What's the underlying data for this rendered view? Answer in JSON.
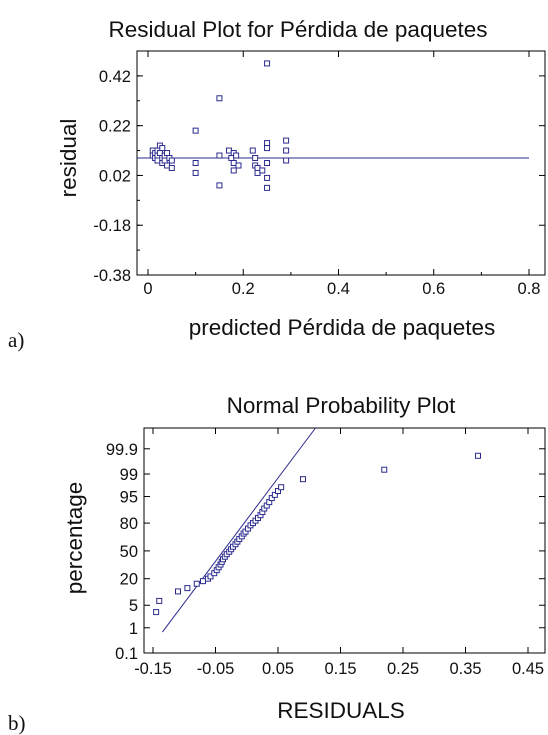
{
  "panel_labels": {
    "a": "a)",
    "b": "b)"
  },
  "colors": {
    "marker": "#2b2b8f",
    "fit_line": "#2b2b8f",
    "axis": "#000000"
  },
  "chart_data": [
    {
      "type": "scatter",
      "title": "Residual Plot for Pérdida de paquetes",
      "xlabel": "predicted Pérdida de paquetes",
      "ylabel": "residual",
      "xlim": [
        0,
        0.8
      ],
      "ylim": [
        -0.38,
        0.52
      ],
      "xticks": [
        0,
        0.2,
        0.4,
        0.6,
        0.8
      ],
      "xtick_labels": [
        "0",
        "0.2",
        "0.4",
        "0.6",
        "0.8"
      ],
      "yticks": [
        -0.38,
        -0.18,
        0.02,
        0.22,
        0.42
      ],
      "ytick_labels": [
        "-0.38",
        "-0.18",
        "0.02",
        "0.22",
        "0.42"
      ],
      "reference_line_y": 0.09,
      "grid": false,
      "legend": "none",
      "points": [
        [
          0.01,
          0.12
        ],
        [
          0.01,
          0.1
        ],
        [
          0.015,
          0.11
        ],
        [
          0.015,
          0.09
        ],
        [
          0.02,
          0.12
        ],
        [
          0.02,
          0.1
        ],
        [
          0.02,
          0.08
        ],
        [
          0.025,
          0.14
        ],
        [
          0.025,
          0.11
        ],
        [
          0.03,
          0.09
        ],
        [
          0.03,
          0.07
        ],
        [
          0.03,
          0.13
        ],
        [
          0.035,
          0.1
        ],
        [
          0.035,
          0.08
        ],
        [
          0.04,
          0.11
        ],
        [
          0.04,
          0.06
        ],
        [
          0.045,
          0.09
        ],
        [
          0.05,
          0.08
        ],
        [
          0.05,
          0.05
        ],
        [
          0.1,
          0.2
        ],
        [
          0.1,
          0.07
        ],
        [
          0.1,
          0.03
        ],
        [
          0.15,
          0.33
        ],
        [
          0.15,
          0.1
        ],
        [
          0.15,
          -0.02
        ],
        [
          0.17,
          0.12
        ],
        [
          0.175,
          0.09
        ],
        [
          0.18,
          0.11
        ],
        [
          0.18,
          0.07
        ],
        [
          0.18,
          0.04
        ],
        [
          0.185,
          0.1
        ],
        [
          0.19,
          0.06
        ],
        [
          0.22,
          0.12
        ],
        [
          0.225,
          0.09
        ],
        [
          0.225,
          0.06
        ],
        [
          0.23,
          0.05
        ],
        [
          0.23,
          0.03
        ],
        [
          0.24,
          0.04
        ],
        [
          0.25,
          0.47
        ],
        [
          0.25,
          0.15
        ],
        [
          0.25,
          0.13
        ],
        [
          0.25,
          0.07
        ],
        [
          0.25,
          0.01
        ],
        [
          0.25,
          -0.03
        ],
        [
          0.29,
          0.16
        ],
        [
          0.29,
          0.12
        ],
        [
          0.29,
          0.08
        ]
      ]
    },
    {
      "type": "scatter",
      "title": "Normal Probability Plot",
      "xlabel": "RESIDUALS",
      "ylabel": "percentage",
      "xlim": [
        -0.15,
        0.45
      ],
      "xticks": [
        -0.15,
        -0.05,
        0.05,
        0.15,
        0.25,
        0.35,
        0.45
      ],
      "xtick_labels": [
        "-0.15",
        "-0.05",
        "0.05",
        "0.15",
        "0.25",
        "0.35",
        "0.45"
      ],
      "ylim": [
        0.1,
        99.99
      ],
      "y_scale": "normal-probability",
      "yticks": [
        0.1,
        1,
        5,
        20,
        50,
        80,
        95,
        99,
        99.9
      ],
      "ytick_labels": [
        "0.1",
        "1",
        "5",
        "20",
        "50",
        "80",
        "95",
        "99",
        "99.9"
      ],
      "grid": false,
      "legend": "none",
      "fit_line": {
        "x": [
          -0.135,
          0.11
        ],
        "y": [
          0.7,
          99.99
        ]
      },
      "points": [
        [
          -0.145,
          3.2
        ],
        [
          -0.14,
          6.5
        ],
        [
          -0.11,
          11
        ],
        [
          -0.095,
          13
        ],
        [
          -0.08,
          16
        ],
        [
          -0.07,
          18
        ],
        [
          -0.062,
          20
        ],
        [
          -0.058,
          22
        ],
        [
          -0.052,
          25
        ],
        [
          -0.048,
          28
        ],
        [
          -0.045,
          31
        ],
        [
          -0.042,
          34
        ],
        [
          -0.04,
          37
        ],
        [
          -0.038,
          40
        ],
        [
          -0.035,
          43
        ],
        [
          -0.032,
          46
        ],
        [
          -0.028,
          49
        ],
        [
          -0.025,
          52
        ],
        [
          -0.022,
          55
        ],
        [
          -0.018,
          58
        ],
        [
          -0.015,
          61
        ],
        [
          -0.012,
          64
        ],
        [
          -0.008,
          67
        ],
        [
          -0.005,
          70
        ],
        [
          -0.002,
          72
        ],
        [
          0.002,
          75
        ],
        [
          0.006,
          78
        ],
        [
          0.01,
          80
        ],
        [
          0.014,
          82
        ],
        [
          0.018,
          84
        ],
        [
          0.022,
          86
        ],
        [
          0.025,
          88
        ],
        [
          0.028,
          90
        ],
        [
          0.032,
          91.5
        ],
        [
          0.036,
          93
        ],
        [
          0.04,
          94.5
        ],
        [
          0.045,
          95.5
        ],
        [
          0.05,
          96.5
        ],
        [
          0.055,
          97.3
        ],
        [
          0.09,
          98.5
        ],
        [
          0.22,
          99.3
        ],
        [
          0.37,
          99.8
        ]
      ]
    }
  ]
}
